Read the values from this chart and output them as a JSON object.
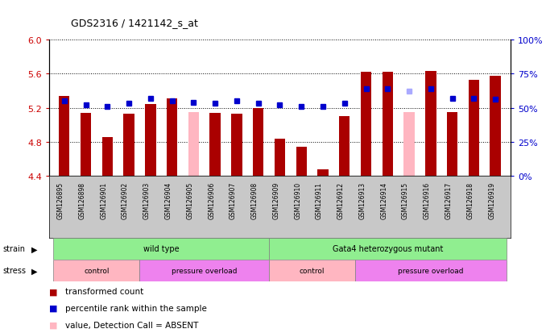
{
  "title": "GDS2316 / 1421142_s_at",
  "samples": [
    "GSM126895",
    "GSM126898",
    "GSM126901",
    "GSM126902",
    "GSM126903",
    "GSM126904",
    "GSM126905",
    "GSM126906",
    "GSM126907",
    "GSM126908",
    "GSM126909",
    "GSM126910",
    "GSM126911",
    "GSM126912",
    "GSM126913",
    "GSM126914",
    "GSM126915",
    "GSM126916",
    "GSM126917",
    "GSM126918",
    "GSM126919"
  ],
  "bar_values": [
    5.34,
    5.14,
    4.86,
    5.13,
    5.24,
    5.31,
    5.15,
    5.14,
    5.13,
    5.2,
    4.84,
    4.74,
    4.48,
    5.1,
    5.62,
    5.62,
    5.15,
    5.63,
    5.15,
    5.53,
    5.57
  ],
  "percentile_values": [
    55,
    52,
    51,
    53,
    57,
    55,
    54,
    53,
    55,
    53,
    52,
    51,
    51,
    53,
    64,
    64,
    62,
    64,
    57,
    57,
    56
  ],
  "absent_value": [
    false,
    false,
    false,
    false,
    false,
    false,
    true,
    false,
    false,
    false,
    false,
    false,
    false,
    false,
    false,
    false,
    true,
    false,
    false,
    false,
    false
  ],
  "absent_rank": [
    false,
    false,
    false,
    false,
    false,
    false,
    false,
    false,
    false,
    false,
    false,
    false,
    false,
    false,
    false,
    false,
    true,
    false,
    false,
    false,
    false
  ],
  "ylim_left": [
    4.4,
    6.0
  ],
  "ylim_right": [
    0,
    100
  ],
  "yticks_left": [
    4.4,
    4.8,
    5.2,
    5.6,
    6.0
  ],
  "yticks_right": [
    0,
    25,
    50,
    75,
    100
  ],
  "bar_color": "#AA0000",
  "absent_bar_color": "#FFB6C1",
  "dot_color": "#0000CC",
  "absent_dot_color": "#AAAAFF",
  "bar_width": 0.5,
  "tick_label_fontsize": 5.5,
  "axis_label_color_left": "#CC0000",
  "axis_label_color_right": "#0000CC",
  "strain_color": "#90EE90",
  "control_color": "#FFB6C1",
  "pressure_color": "#EE82EE",
  "xticklabel_bg": "#C8C8C8"
}
